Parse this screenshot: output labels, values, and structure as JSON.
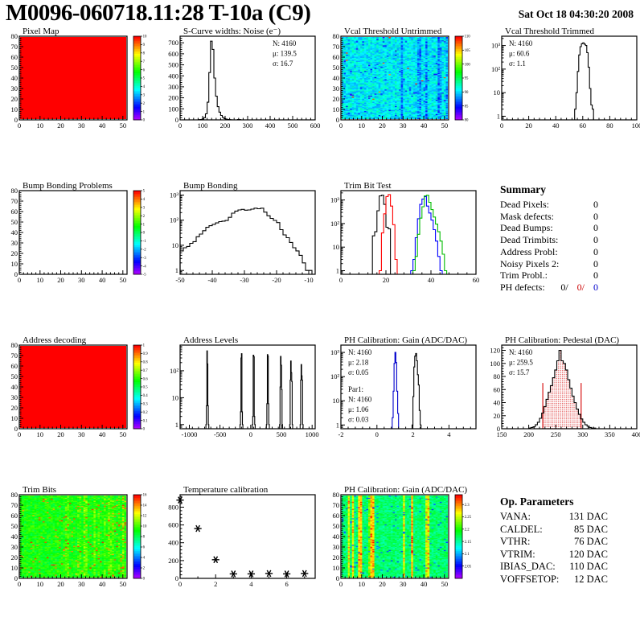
{
  "header": {
    "title": "M0096-060718.11:28 T-10a (C9)",
    "date": "Sat Oct 18 04:30:20 2008"
  },
  "chart_data": [
    {
      "id": "pixel_map",
      "type": "heatmap",
      "title": "Pixel Map",
      "xlim": [
        0,
        52
      ],
      "ylim": [
        0,
        80
      ],
      "xticks": [
        0,
        10,
        20,
        30,
        40,
        50
      ],
      "yticks": [
        0,
        10,
        20,
        30,
        40,
        50,
        60,
        70,
        80
      ],
      "heat": {
        "kind": "uniform",
        "value": 10
      },
      "colorbar": {
        "min": 0,
        "max": 10,
        "ticks": [
          0,
          1,
          2,
          3,
          4,
          5,
          6,
          7,
          8,
          9,
          10
        ]
      }
    },
    {
      "id": "scurve_noise",
      "type": "histogram",
      "title": "S-Curve widths: Noise (e⁻)",
      "xlim": [
        0,
        600
      ],
      "ylim": [
        0,
        760
      ],
      "xticks": [
        0,
        100,
        200,
        300,
        400,
        500,
        600
      ],
      "yticks": [
        0,
        100,
        200,
        300,
        400,
        500,
        600,
        700
      ],
      "series": [
        {
          "color": "#000000",
          "x0": 82.5,
          "binw": 7.5,
          "counts": [
            2,
            4,
            8,
            20,
            55,
            160,
            430,
            715,
            640,
            380,
            215,
            120,
            70,
            40,
            22,
            12,
            7,
            4,
            2,
            1,
            0,
            0,
            0,
            4,
            2,
            0
          ]
        }
      ],
      "stats": {
        "pos": "tr",
        "lines": [
          "N: 4160",
          "μ: 139.5",
          "σ: 16.7"
        ],
        "colors": [
          "#000000",
          "#000000",
          "#000000"
        ]
      }
    },
    {
      "id": "vcal_untrimmed",
      "type": "heatmap",
      "title": "Vcal Threshold Untrimmed",
      "xlim": [
        0,
        52
      ],
      "ylim": [
        0,
        80
      ],
      "xticks": [
        0,
        10,
        20,
        30,
        40,
        50
      ],
      "yticks": [
        0,
        10,
        20,
        30,
        40,
        50,
        60,
        70,
        80
      ],
      "heat": {
        "kind": "vcal",
        "seed": 11
      },
      "colorbar": {
        "min": 80,
        "max": 110,
        "ticks": [
          80,
          85,
          90,
          95,
          100,
          105,
          110
        ]
      }
    },
    {
      "id": "vcal_trimmed",
      "type": "histogram",
      "title": "Vcal Threshold Trimmed",
      "ylog": true,
      "xlim": [
        0,
        100
      ],
      "ylim": [
        0.7,
        2500
      ],
      "xticks": [
        0,
        20,
        40,
        60,
        80,
        100
      ],
      "series": [
        {
          "color": "#000000",
          "x0": 54,
          "binw": 1,
          "counts": [
            2,
            10,
            80,
            400,
            900,
            1200,
            1300,
            1150,
            1000,
            500,
            120,
            15,
            3,
            2
          ]
        }
      ],
      "stats": {
        "pos": "tl",
        "lines": [
          "N: 4160",
          "μ: 60.6",
          "σ:  1.1"
        ],
        "colors": [
          "#000000",
          "#000000",
          "#000000"
        ]
      }
    },
    {
      "id": "bump_problems",
      "type": "heatmap",
      "title": "Bump Bonding Problems",
      "xlim": [
        0,
        52
      ],
      "ylim": [
        0,
        80
      ],
      "xticks": [
        0,
        10,
        20,
        30,
        40,
        50
      ],
      "yticks": [
        0,
        10,
        20,
        30,
        40,
        50,
        60,
        70,
        80
      ],
      "heat": {
        "kind": "empty"
      },
      "colorbar": {
        "min": -5,
        "max": 5,
        "ticks": [
          -5,
          -4,
          -3,
          -2,
          -1,
          0,
          1,
          2,
          3,
          4,
          5
        ]
      }
    },
    {
      "id": "bump_bonding",
      "type": "histogram",
      "title": "Bump Bonding",
      "ylog": true,
      "xlim": [
        -50,
        -8
      ],
      "ylim": [
        0.7,
        1500
      ],
      "xticks": [
        -50,
        -40,
        -30,
        -20,
        -10
      ],
      "series": [
        {
          "color": "#000000",
          "x0": -50,
          "binw": 1,
          "counts": [
            6,
            8,
            9,
            12,
            14,
            22,
            28,
            38,
            52,
            60,
            68,
            78,
            88,
            92,
            97,
            130,
            190,
            230,
            255,
            270,
            250,
            255,
            275,
            300,
            285,
            300,
            210,
            150,
            118,
            98,
            80,
            42,
            26,
            20,
            13,
            8,
            6,
            4,
            2,
            1,
            1
          ]
        }
      ]
    },
    {
      "id": "trim_bit_test",
      "type": "histogram",
      "title": "Trim Bit Test",
      "ylog": true,
      "xlim": [
        0,
        60
      ],
      "ylim": [
        0.7,
        2500
      ],
      "xticks": [
        0,
        20,
        40,
        60
      ],
      "series": [
        {
          "color": "#000000",
          "x0": 14,
          "binw": 1,
          "counts": [
            30,
            45,
            350,
            1500,
            1600,
            650,
            70,
            60
          ]
        },
        {
          "color": "#ff0000",
          "x0": 17,
          "binw": 1,
          "counts": [
            1,
            40,
            260,
            1400,
            1700,
            550,
            90,
            3
          ]
        },
        {
          "color": "#0000ff",
          "x0": 31,
          "binw": 1,
          "counts": [
            1,
            3,
            25,
            160,
            650,
            1100,
            1400,
            550,
            280,
            140,
            55,
            18,
            4,
            1
          ]
        },
        {
          "color": "#00bb00",
          "x0": 32,
          "binw": 1,
          "counts": [
            1,
            4,
            35,
            170,
            520,
            1500,
            1600,
            800,
            390,
            190,
            95,
            45,
            18,
            5,
            1
          ],
          "baseline": true
        }
      ]
    },
    {
      "id": "summary",
      "type": "table",
      "title": "Summary",
      "rows": [
        [
          "Dead Pixels:",
          "0"
        ],
        [
          "Mask defects:",
          "0"
        ],
        [
          "Dead Bumps:",
          "0"
        ],
        [
          "Dead Trimbits:",
          "0"
        ],
        [
          "Address Probl:",
          "0"
        ],
        [
          "Noisy Pixels 2:",
          "0"
        ],
        [
          "Trim Probl.:",
          "0"
        ]
      ],
      "multi_row": {
        "label": "PH defects:",
        "values": [
          "0/",
          "0/",
          "0"
        ],
        "colors": [
          "#000000",
          "#cc0000",
          "#0000cc"
        ]
      }
    },
    {
      "id": "address_decoding",
      "type": "heatmap",
      "title": "Address decoding",
      "xlim": [
        0,
        52
      ],
      "ylim": [
        0,
        80
      ],
      "xticks": [
        0,
        10,
        20,
        30,
        40,
        50
      ],
      "yticks": [
        0,
        10,
        20,
        30,
        40,
        50,
        60,
        70,
        80
      ],
      "heat": {
        "kind": "uniform",
        "value": 1
      },
      "colorbar": {
        "min": 0,
        "max": 1,
        "ticks": [
          0,
          0.1,
          0.2,
          0.3,
          0.4,
          0.5,
          0.6,
          0.7,
          0.8,
          0.9,
          1
        ]
      }
    },
    {
      "id": "address_levels",
      "type": "histogram",
      "title": "Address Levels",
      "ylog": true,
      "xlim": [
        -1150,
        1050
      ],
      "ylim": [
        0.7,
        900
      ],
      "xticks": [
        -1000,
        -500,
        0,
        500,
        1000
      ],
      "series": [
        {
          "color": "#000000",
          "x0": -730,
          "binw": 8,
          "counts": [
            1,
            5,
            550,
            180,
            5,
            1
          ]
        },
        {
          "color": "#000000",
          "x0": -175,
          "binw": 8,
          "counts": [
            1,
            3,
            300,
            430,
            3,
            1
          ]
        },
        {
          "color": "#000000",
          "x0": 25,
          "binw": 8,
          "counts": [
            1,
            2,
            380,
            330,
            2,
            1
          ]
        },
        {
          "color": "#000000",
          "x0": 255,
          "binw": 8,
          "counts": [
            1,
            6,
            400,
            350,
            6,
            1
          ]
        },
        {
          "color": "#000000",
          "x0": 470,
          "binw": 8,
          "counts": [
            1,
            25,
            340,
            160,
            20,
            1
          ]
        },
        {
          "color": "#000000",
          "x0": 635,
          "binw": 8,
          "counts": [
            1,
            45,
            230,
            85,
            40,
            1
          ]
        },
        {
          "color": "#000000",
          "x0": 805,
          "binw": 8,
          "counts": [
            1,
            45,
            170,
            65,
            45,
            1
          ]
        }
      ]
    },
    {
      "id": "ph_gain_hist",
      "type": "histogram",
      "title": "PH Calibration: Gain (ADC/DAC)",
      "ylog": true,
      "xlim": [
        -2,
        5.5
      ],
      "ylim": [
        0.7,
        2000
      ],
      "xticks": [
        -2,
        0,
        2,
        4
      ],
      "series": [
        {
          "color": "#000000",
          "x0": 1.95,
          "binw": 0.05,
          "counts": [
            1,
            15,
            250,
            700,
            900,
            450,
            120,
            45,
            4,
            1
          ]
        },
        {
          "color": "#0000cc",
          "x0": 0.85,
          "binw": 0.05,
          "counts": [
            2,
            25,
            350,
            1000,
            380,
            25,
            3
          ]
        }
      ],
      "stats": {
        "pos": "tl",
        "lines": [
          "N: 4160",
          "μ: 2.18",
          "σ: 0.05"
        ],
        "colors": [
          "#000000",
          "#000000",
          "#000000"
        ]
      },
      "stats2": {
        "pos": "bl",
        "lines": [
          "Par1:",
          "N: 4160",
          "μ: 1.06",
          "σ: 0.03"
        ],
        "colors": [
          "#0000cc",
          "#0000cc",
          "#0000cc",
          "#0000cc"
        ]
      }
    },
    {
      "id": "ph_pedestal",
      "type": "histogram",
      "title": "PH Calibration: Pedestal (DAC)",
      "xlim": [
        150,
        400
      ],
      "ylim": [
        0,
        128
      ],
      "xticks": [
        150,
        200,
        250,
        300,
        350,
        400
      ],
      "yticks": [
        0,
        20,
        40,
        60,
        80,
        100,
        120
      ],
      "series": [
        {
          "color": "#000000",
          "x0": 200,
          "binw": 4,
          "counts": [
            1,
            2,
            3,
            6,
            10,
            16,
            24,
            34,
            45,
            56,
            66,
            78,
            90,
            104,
            120,
            104,
            100,
            90,
            75,
            62,
            50,
            40,
            30,
            22,
            15,
            10,
            6,
            4,
            2,
            1,
            1
          ]
        }
      ],
      "fill_range": [
        226,
        297
      ],
      "range_line_height": 70,
      "fill_color": "#d40000",
      "stats": {
        "pos": "tl",
        "lines": [
          "N: 4160",
          "μ: 259.5",
          "σ: 15.7"
        ],
        "colors": [
          "#000000",
          "#cc0000",
          "#cc0000"
        ]
      }
    },
    {
      "id": "trim_bits_map",
      "type": "heatmap",
      "title": "Trim Bits",
      "xlim": [
        0,
        52
      ],
      "ylim": [
        0,
        80
      ],
      "xticks": [
        0,
        10,
        20,
        30,
        40,
        50
      ],
      "yticks": [
        0,
        10,
        20,
        30,
        40,
        50,
        60,
        70,
        80
      ],
      "heat": {
        "kind": "trim",
        "seed": 22
      },
      "colorbar": {
        "min": 0,
        "max": 16,
        "ticks": [
          0,
          2,
          4,
          6,
          8,
          10,
          12,
          14,
          16
        ]
      }
    },
    {
      "id": "temperature_calibration",
      "type": "scatter",
      "title": "Temperature calibration",
      "xlim": [
        0,
        7.6
      ],
      "ylim": [
        0,
        940
      ],
      "xsub": 2,
      "xticks": [
        0,
        2,
        4,
        6
      ],
      "yticks": [
        0,
        200,
        400,
        600,
        800
      ],
      "marker": "asterisk",
      "points": [
        [
          0,
          880
        ],
        [
          1,
          560
        ],
        [
          2,
          210
        ],
        [
          3,
          50
        ],
        [
          4,
          50
        ],
        [
          5,
          55
        ],
        [
          6,
          50
        ],
        [
          7,
          55
        ]
      ]
    },
    {
      "id": "ph_gain_map",
      "type": "heatmap",
      "title": "PH Calibration: Gain (ADC/DAC)",
      "xlim": [
        0,
        52
      ],
      "ylim": [
        0,
        80
      ],
      "xticks": [
        0,
        10,
        20,
        30,
        40,
        50
      ],
      "yticks": [
        0,
        10,
        20,
        30,
        40,
        50,
        60,
        70,
        80
      ],
      "heat": {
        "kind": "gain",
        "seed": 33
      },
      "colorbar": {
        "min": 2.0,
        "max": 2.34,
        "ticks": [
          2.05,
          2.1,
          2.15,
          2.2,
          2.25,
          2.3
        ]
      }
    },
    {
      "id": "op_parameters",
      "type": "table",
      "title": "Op. Parameters",
      "rows": [
        [
          "VANA:",
          "131 DAC"
        ],
        [
          "CALDEL:",
          "85 DAC"
        ],
        [
          "VTHR:",
          "76 DAC"
        ],
        [
          "VTRIM:",
          "120 DAC"
        ],
        [
          "IBIAS_DAC:",
          "110 DAC"
        ],
        [
          "VOFFSETOP:",
          "12 DAC"
        ]
      ]
    }
  ]
}
